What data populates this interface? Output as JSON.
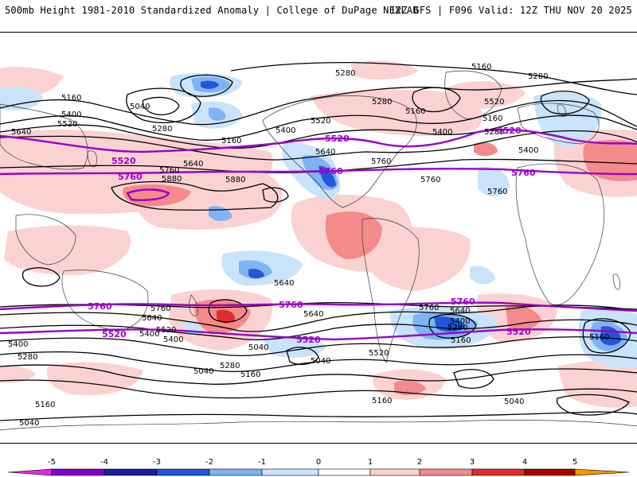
{
  "header": {
    "title_left": "500mb Height 1981-2010 Standardized Anomaly | College of DuPage NEXLAB",
    "title_right": "12Z GFS | F096 Valid: 12Z THU NOV 20 2025"
  },
  "colors": {
    "contour_black": "#000000",
    "contour_purple": "#9b00c8",
    "neg_1": "#c9e3fb",
    "neg_2": "#7fb3f4",
    "neg_3": "#2456d9",
    "neg_4": "#1d1d9e",
    "neg_5": "#8400c8",
    "pos_1": "#fbd2d2",
    "pos_2": "#f48a8a",
    "pos_3": "#e02c2c",
    "pos_4": "#a80000",
    "pos_5": "#f59a00",
    "land_border": "#3a3a3a"
  },
  "map": {
    "height_labels": [
      "5280",
      "5160",
      "5280",
      "5160",
      "5040",
      "5400",
      "5520",
      "5640",
      "5280",
      "5160",
      "5400",
      "5520",
      "5280",
      "5160",
      "5520",
      "5400",
      "5640",
      "5760",
      "5760",
      "5880",
      "5880",
      "5640",
      "5400",
      "5160",
      "5280",
      "5760",
      "5640",
      "5760",
      "5520",
      "5400",
      "5400",
      "5280",
      "5160",
      "5040",
      "5760",
      "5640",
      "5640",
      "5520",
      "5400",
      "5040",
      "5160",
      "5280",
      "5400",
      "5640",
      "5760",
      "5160",
      "5160",
      "5040",
      "5040",
      "5280",
      "5160",
      "5040"
    ],
    "purple_labels": [
      "5520",
      "5760",
      "5520",
      "5760",
      "5520",
      "5760",
      "5760",
      "5760",
      "5520",
      "5520",
      "5760",
      "5520"
    ]
  },
  "colorbar": {
    "ticks": [
      "-5",
      "-4",
      "-3",
      "-2",
      "-1",
      "0",
      "1",
      "2",
      "3",
      "4",
      "5"
    ]
  }
}
